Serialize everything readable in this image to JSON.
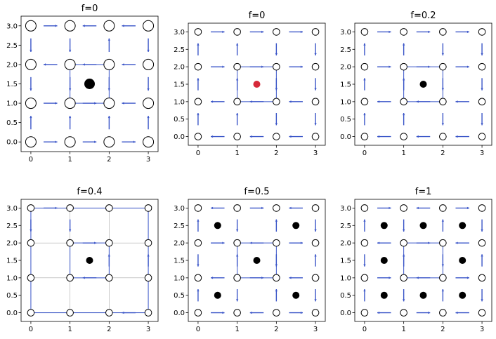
{
  "colors": {
    "link": "#3a55c8",
    "site_edge": "#000000",
    "site_fill": "#ffffff",
    "dot_black": "#000000",
    "dot_red": "#d62839",
    "thin_line": "#aaaaaa"
  },
  "chart_data": [
    {
      "type": "scatter",
      "title": "f=0",
      "xlim": [
        -0.25,
        3.25
      ],
      "ylim": [
        -0.25,
        3.25
      ],
      "xticks": [
        "0",
        "1",
        "2",
        "3"
      ],
      "yticks": [
        "0.0",
        "0.5",
        "1.0",
        "1.5",
        "2.0",
        "2.5",
        "3.0"
      ],
      "sites": "grid4x4",
      "site_size": "large",
      "plaquette_dots": [
        [
          1.5,
          1.5
        ]
      ],
      "dot_color": "black",
      "dot_size": "large",
      "arrows": [
        [
          0,
          3,
          "+x"
        ],
        [
          1,
          3,
          "-x"
        ],
        [
          2,
          3,
          "-x"
        ],
        [
          0,
          2,
          "-x"
        ],
        [
          1,
          2,
          "-x"
        ],
        [
          2,
          2,
          "-x"
        ],
        [
          0,
          1,
          "+x"
        ],
        [
          1,
          1,
          "+x"
        ],
        [
          2,
          1,
          "-x"
        ],
        [
          0,
          0,
          "+x"
        ],
        [
          1,
          0,
          "+x"
        ],
        [
          2,
          0,
          "+x"
        ],
        [
          0,
          0,
          "+y"
        ],
        [
          0,
          1,
          "-y"
        ],
        [
          0,
          2,
          "-y"
        ],
        [
          1,
          0,
          "+y"
        ],
        [
          1,
          1,
          "-y"
        ],
        [
          1,
          2,
          "-y"
        ],
        [
          2,
          0,
          "+y"
        ],
        [
          2,
          1,
          "-y"
        ],
        [
          2,
          2,
          "+y"
        ],
        [
          3,
          0,
          "+y"
        ],
        [
          3,
          1,
          "-y"
        ],
        [
          3,
          2,
          "-y"
        ]
      ],
      "loop": true
    },
    {
      "type": "scatter",
      "title": "f=0",
      "xlim": [
        -0.25,
        3.25
      ],
      "ylim": [
        -0.25,
        3.25
      ],
      "xticks": [
        "0",
        "1",
        "2",
        "3"
      ],
      "yticks": [
        "0.0",
        "0.5",
        "1.0",
        "1.5",
        "2.0",
        "2.5",
        "3.0"
      ],
      "sites": "grid4x4",
      "site_size": "small",
      "plaquette_dots": [
        [
          1.5,
          1.5
        ]
      ],
      "dot_color": "red",
      "dot_size": "small",
      "arrows": [
        [
          0,
          3,
          "+x"
        ],
        [
          1,
          3,
          "+x"
        ],
        [
          2,
          3,
          "+x"
        ],
        [
          0,
          2,
          "+x"
        ],
        [
          1,
          2,
          "+x"
        ],
        [
          2,
          2,
          "+x"
        ],
        [
          0,
          1,
          "-x"
        ],
        [
          1,
          1,
          "-x"
        ],
        [
          2,
          1,
          "-x"
        ],
        [
          0,
          0,
          "-x"
        ],
        [
          1,
          0,
          "-x"
        ],
        [
          2,
          0,
          "-x"
        ],
        [
          0,
          0,
          "+y"
        ],
        [
          0,
          1,
          "+y"
        ],
        [
          0,
          2,
          "+y"
        ],
        [
          1,
          0,
          "+y"
        ],
        [
          1,
          1,
          "+y"
        ],
        [
          1,
          2,
          "+y"
        ],
        [
          2,
          0,
          "-y"
        ],
        [
          2,
          1,
          "-y"
        ],
        [
          2,
          2,
          "-y"
        ],
        [
          3,
          0,
          "-y"
        ],
        [
          3,
          1,
          "-y"
        ],
        [
          3,
          2,
          "-y"
        ]
      ],
      "loop": true
    },
    {
      "type": "scatter",
      "title": "f=0.2",
      "xlim": [
        -0.25,
        3.25
      ],
      "ylim": [
        -0.25,
        3.25
      ],
      "xticks": [
        "0",
        "1",
        "2",
        "3"
      ],
      "yticks": [
        "0.0",
        "0.5",
        "1.0",
        "1.5",
        "2.0",
        "2.5",
        "3.0"
      ],
      "sites": "grid4x4",
      "site_size": "small",
      "plaquette_dots": [
        [
          1.5,
          1.5
        ]
      ],
      "dot_color": "black",
      "dot_size": "small",
      "arrows": [
        [
          0,
          3,
          "+x"
        ],
        [
          1,
          3,
          "+x"
        ],
        [
          2,
          3,
          "+x"
        ],
        [
          0,
          2,
          "+x"
        ],
        [
          1,
          2,
          "+x"
        ],
        [
          2,
          2,
          "+x"
        ],
        [
          0,
          1,
          "-x"
        ],
        [
          1,
          1,
          "-x"
        ],
        [
          2,
          1,
          "-x"
        ],
        [
          0,
          0,
          "-x"
        ],
        [
          1,
          0,
          "-x"
        ],
        [
          2,
          0,
          "-x"
        ],
        [
          0,
          0,
          "+y"
        ],
        [
          0,
          1,
          "+y"
        ],
        [
          0,
          2,
          "+y"
        ],
        [
          1,
          0,
          "+y"
        ],
        [
          1,
          1,
          "+y"
        ],
        [
          1,
          2,
          "+y"
        ],
        [
          2,
          0,
          "-y"
        ],
        [
          2,
          1,
          "-y"
        ],
        [
          2,
          2,
          "-y"
        ],
        [
          3,
          0,
          "-y"
        ],
        [
          3,
          1,
          "-y"
        ],
        [
          3,
          2,
          "-y"
        ]
      ],
      "loop": true
    },
    {
      "type": "scatter",
      "title": "f=0.4",
      "xlim": [
        -0.25,
        3.25
      ],
      "ylim": [
        -0.25,
        3.25
      ],
      "xticks": [
        "0",
        "1",
        "2",
        "3"
      ],
      "yticks": [
        "0.0",
        "0.5",
        "1.0",
        "1.5",
        "2.0",
        "2.5",
        "3.0"
      ],
      "sites": "grid4x4",
      "site_size": "small",
      "plaquette_dots": [
        [
          1.5,
          1.5
        ]
      ],
      "dot_color": "black",
      "dot_size": "small",
      "arrows": [
        [
          1,
          2,
          "+x"
        ],
        [
          1,
          1,
          "-x"
        ],
        [
          1,
          2,
          "-y"
        ],
        [
          2,
          1,
          "+y"
        ],
        [
          0,
          3,
          "+x"
        ],
        [
          2,
          0,
          "-x"
        ],
        [
          0,
          2,
          "-y"
        ],
        [
          3,
          1,
          "+y"
        ]
      ],
      "thin_grid": true,
      "loop": true,
      "outer_loop": true
    },
    {
      "type": "scatter",
      "title": "f=0.5",
      "xlim": [
        -0.25,
        3.25
      ],
      "ylim": [
        -0.25,
        3.25
      ],
      "xticks": [
        "0",
        "1",
        "2",
        "3"
      ],
      "yticks": [
        "0.0",
        "0.5",
        "1.0",
        "1.5",
        "2.0",
        "2.5",
        "3.0"
      ],
      "sites": "grid4x4",
      "site_size": "small",
      "plaquette_dots": [
        [
          0.5,
          2.5
        ],
        [
          2.5,
          2.5
        ],
        [
          1.5,
          1.5
        ],
        [
          0.5,
          0.5
        ],
        [
          2.5,
          0.5
        ]
      ],
      "dot_color": "black",
      "dot_size": "small",
      "arrows": [
        [
          0,
          3,
          "-x"
        ],
        [
          1,
          3,
          "+x"
        ],
        [
          2,
          3,
          "-x"
        ],
        [
          0,
          2,
          "+x"
        ],
        [
          1,
          2,
          "-x"
        ],
        [
          2,
          2,
          "+x"
        ],
        [
          0,
          1,
          "-x"
        ],
        [
          1,
          1,
          "+x"
        ],
        [
          2,
          1,
          "-x"
        ],
        [
          0,
          0,
          "+x"
        ],
        [
          1,
          0,
          "-x"
        ],
        [
          2,
          0,
          "+x"
        ],
        [
          0,
          0,
          "+y"
        ],
        [
          0,
          1,
          "-y"
        ],
        [
          0,
          2,
          "+y"
        ],
        [
          1,
          0,
          "-y"
        ],
        [
          1,
          1,
          "+y"
        ],
        [
          1,
          2,
          "-y"
        ],
        [
          2,
          0,
          "+y"
        ],
        [
          2,
          1,
          "-y"
        ],
        [
          2,
          2,
          "+y"
        ],
        [
          3,
          0,
          "-y"
        ],
        [
          3,
          1,
          "+y"
        ],
        [
          3,
          2,
          "-y"
        ]
      ],
      "loop": true
    },
    {
      "type": "scatter",
      "title": "f=1",
      "xlim": [
        -0.25,
        3.25
      ],
      "ylim": [
        -0.25,
        3.25
      ],
      "xticks": [
        "0",
        "1",
        "2",
        "3"
      ],
      "yticks": [
        "0.0",
        "0.5",
        "1.0",
        "1.5",
        "2.0",
        "2.5",
        "3.0"
      ],
      "sites": "grid4x4",
      "site_size": "small",
      "plaquette_dots": [
        [
          0.5,
          2.5
        ],
        [
          1.5,
          2.5
        ],
        [
          2.5,
          2.5
        ],
        [
          0.5,
          1.5
        ],
        [
          2.5,
          1.5
        ],
        [
          0.5,
          0.5
        ],
        [
          1.5,
          0.5
        ],
        [
          2.5,
          0.5
        ]
      ],
      "dot_color": "black",
      "dot_size": "small",
      "arrows": [
        [
          0,
          3,
          "+x"
        ],
        [
          1,
          3,
          "-x"
        ],
        [
          2,
          3,
          "+x"
        ],
        [
          0,
          2,
          "-x"
        ],
        [
          1,
          2,
          "+x"
        ],
        [
          2,
          2,
          "-x"
        ],
        [
          0,
          1,
          "+x"
        ],
        [
          1,
          1,
          "-x"
        ],
        [
          2,
          1,
          "+x"
        ],
        [
          0,
          0,
          "-x"
        ],
        [
          1,
          0,
          "+x"
        ],
        [
          2,
          0,
          "-x"
        ],
        [
          0,
          0,
          "+y"
        ],
        [
          0,
          1,
          "-y"
        ],
        [
          0,
          2,
          "+y"
        ],
        [
          1,
          0,
          "-y"
        ],
        [
          1,
          1,
          "+y"
        ],
        [
          1,
          2,
          "-y"
        ],
        [
          2,
          0,
          "+y"
        ],
        [
          2,
          1,
          "-y"
        ],
        [
          2,
          2,
          "+y"
        ],
        [
          3,
          0,
          "-y"
        ],
        [
          3,
          1,
          "+y"
        ],
        [
          3,
          2,
          "-y"
        ]
      ],
      "loop": true
    }
  ]
}
